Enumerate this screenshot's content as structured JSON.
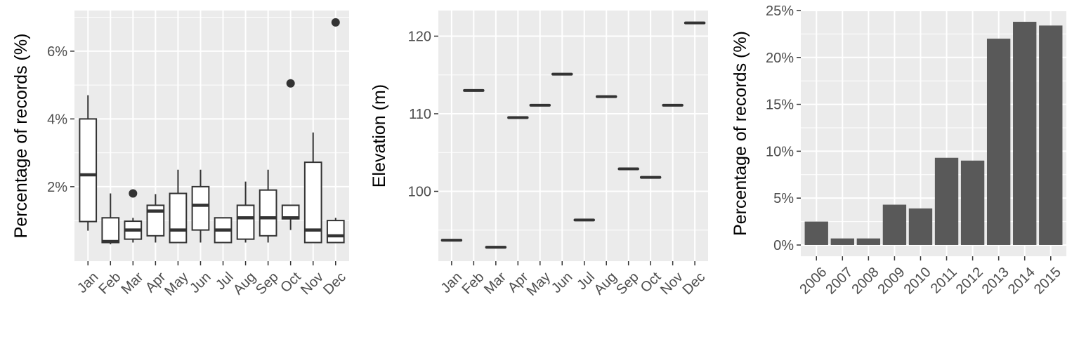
{
  "chart_data": [
    {
      "type": "boxplot",
      "ylabel": "Percentage of records (%)",
      "categories": [
        "Jan",
        "Feb",
        "Mar",
        "Apr",
        "May",
        "Jun",
        "Jul",
        "Aug",
        "Sep",
        "Oct",
        "Nov",
        "Dec"
      ],
      "ylim": [
        -0.2,
        7.2
      ],
      "yticks": [
        2,
        4,
        6
      ],
      "yticklabels": [
        "2%",
        "4%",
        "6%"
      ],
      "boxes": [
        {
          "min": 0.7,
          "q1": 0.97,
          "median": 2.35,
          "q3": 4.0,
          "max": 4.7,
          "outliers": []
        },
        {
          "min": 0.3,
          "q1": 0.35,
          "median": 0.38,
          "q3": 1.08,
          "max": 1.8,
          "outliers": []
        },
        {
          "min": 0.35,
          "q1": 0.45,
          "median": 0.72,
          "q3": 0.98,
          "max": 1.08,
          "outliers": [
            1.8
          ]
        },
        {
          "min": 0.35,
          "q1": 0.55,
          "median": 1.28,
          "q3": 1.45,
          "max": 1.78,
          "outliers": []
        },
        {
          "min": 0.35,
          "q1": 0.35,
          "median": 0.72,
          "q3": 1.8,
          "max": 2.5,
          "outliers": []
        },
        {
          "min": 0.35,
          "q1": 0.72,
          "median": 1.45,
          "q3": 2.0,
          "max": 2.5,
          "outliers": []
        },
        {
          "min": 0.35,
          "q1": 0.35,
          "median": 0.72,
          "q3": 1.08,
          "max": 1.08,
          "outliers": []
        },
        {
          "min": 0.35,
          "q1": 0.45,
          "median": 1.08,
          "q3": 1.45,
          "max": 2.15,
          "outliers": []
        },
        {
          "min": 0.35,
          "q1": 0.55,
          "median": 1.08,
          "q3": 1.9,
          "max": 2.5,
          "outliers": []
        },
        {
          "min": 0.72,
          "q1": 1.05,
          "median": 1.08,
          "q3": 1.45,
          "max": 1.45,
          "outliers": [
            5.05
          ]
        },
        {
          "min": 0.35,
          "q1": 0.35,
          "median": 0.72,
          "q3": 2.72,
          "max": 3.6,
          "outliers": []
        },
        {
          "min": 0.35,
          "q1": 0.35,
          "median": 0.55,
          "q3": 1.0,
          "max": 1.08,
          "outliers": [
            6.85
          ]
        }
      ]
    },
    {
      "type": "scatter",
      "ylabel": "Elevation (m)",
      "categories": [
        "Jan",
        "Feb",
        "Mar",
        "Apr",
        "May",
        "Jun",
        "Jul",
        "Aug",
        "Sep",
        "Oct",
        "Nov",
        "Dec"
      ],
      "values": [
        93.7,
        113.0,
        92.8,
        109.5,
        111.1,
        115.1,
        96.3,
        112.2,
        102.9,
        101.8,
        111.1,
        121.7
      ],
      "ylim": [
        91.0,
        123.3
      ],
      "yticks": [
        100,
        110,
        120
      ],
      "yticklabels": [
        "100",
        "110",
        "120"
      ]
    },
    {
      "type": "bar",
      "ylabel": "Percentage of records (%)",
      "categories": [
        "2006",
        "2007",
        "2008",
        "2009",
        "2010",
        "2011",
        "2012",
        "2013",
        "2014",
        "2015"
      ],
      "values": [
        2.5,
        0.7,
        0.7,
        4.3,
        3.9,
        9.3,
        9.0,
        22.0,
        23.8,
        23.4
      ],
      "ylim": [
        -1.2,
        25.0
      ],
      "yticks": [
        0,
        5,
        10,
        15,
        20,
        25
      ],
      "yticklabels": [
        "0%",
        "5%",
        "10%",
        "15%",
        "20%",
        "25%"
      ]
    }
  ]
}
